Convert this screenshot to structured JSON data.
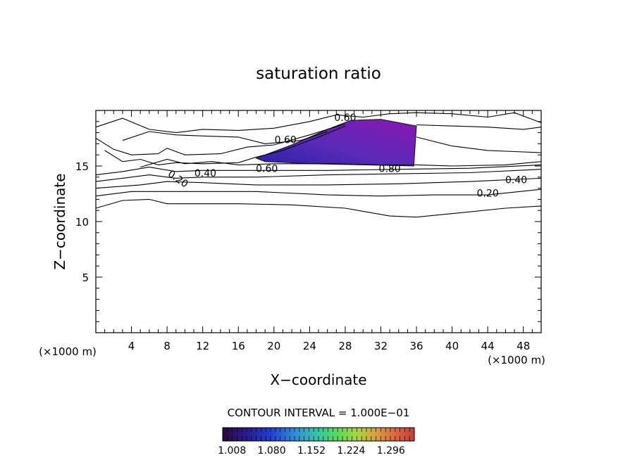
{
  "chart_data": {
    "type": "contour",
    "title": "saturation ratio",
    "xlabel": "X−coordinate",
    "ylabel": "Z−coordinate",
    "x_unit": "(×1000 m)",
    "y_unit": "(×1000 m)",
    "xlim": [
      0,
      50
    ],
    "ylim": [
      0,
      20
    ],
    "x_ticks": [
      4,
      8,
      12,
      16,
      20,
      24,
      28,
      32,
      36,
      40,
      44,
      48
    ],
    "y_ticks": [
      5,
      10,
      15
    ],
    "contour_interval_label": "CONTOUR INTERVAL = 1.000E−01",
    "contour_labels": [
      {
        "text": "0.20",
        "x": 9.2,
        "z": 13.8,
        "rotate": 35
      },
      {
        "text": "0.40",
        "x": 12.3,
        "z": 14.3
      },
      {
        "text": "0.60",
        "x": 19.2,
        "z": 14.7
      },
      {
        "text": "0.80",
        "x": 33.0,
        "z": 14.7
      },
      {
        "text": "0.40",
        "x": 47.2,
        "z": 13.7
      },
      {
        "text": "0.20",
        "x": 44.0,
        "z": 12.5
      },
      {
        "text": "0.60",
        "x": 28.0,
        "z": 19.3
      },
      {
        "text": "0.60",
        "x": 21.3,
        "z": 17.3
      }
    ],
    "shaded_region": {
      "description_value_range": [
        1.008,
        1.3
      ],
      "polygon": [
        [
          18.0,
          15.7
        ],
        [
          22.0,
          16.9
        ],
        [
          26.0,
          18.3
        ],
        [
          28.6,
          19.1
        ],
        [
          32.0,
          19.2
        ],
        [
          36.0,
          18.6
        ],
        [
          35.7,
          15.0
        ],
        [
          30.0,
          15.1
        ],
        [
          24.0,
          15.2
        ],
        [
          19.0,
          15.4
        ]
      ]
    },
    "contour_lines": [
      [
        [
          0,
          11.2
        ],
        [
          3,
          11.9
        ],
        [
          6,
          12.0
        ],
        [
          8,
          11.6
        ],
        [
          16,
          11.6
        ],
        [
          22,
          11.5
        ],
        [
          28,
          11.2
        ],
        [
          33,
          10.5
        ],
        [
          36,
          10.4
        ],
        [
          41,
          10.8
        ],
        [
          46,
          11.2
        ],
        [
          50,
          11.4
        ]
      ],
      [
        [
          0,
          12.3
        ],
        [
          4,
          12.7
        ],
        [
          10,
          12.7
        ],
        [
          18,
          12.7
        ],
        [
          26,
          12.4
        ],
        [
          32,
          12.3
        ],
        [
          38,
          12.4
        ],
        [
          44,
          12.4
        ],
        [
          50,
          12.9
        ]
      ],
      [
        [
          0,
          13.0
        ],
        [
          5,
          13.3
        ],
        [
          8,
          13.6
        ],
        [
          12,
          13.5
        ],
        [
          18,
          13.3
        ],
        [
          26,
          13.3
        ],
        [
          34,
          13.4
        ],
        [
          42,
          13.6
        ],
        [
          50,
          13.9
        ]
      ],
      [
        [
          0,
          13.6
        ],
        [
          3,
          13.9
        ],
        [
          6,
          14.2
        ],
        [
          9,
          13.9
        ],
        [
          12,
          14.0
        ],
        [
          18,
          14.0
        ],
        [
          26,
          14.2
        ],
        [
          34,
          14.3
        ],
        [
          42,
          14.4
        ],
        [
          50,
          14.7
        ]
      ],
      [
        [
          0,
          14.2
        ],
        [
          3,
          14.5
        ],
        [
          6,
          14.9
        ],
        [
          9,
          14.5
        ],
        [
          12,
          14.6
        ],
        [
          18,
          14.6
        ],
        [
          26,
          14.6
        ],
        [
          34,
          14.7
        ],
        [
          42,
          14.8
        ],
        [
          50,
          15.1
        ]
      ],
      [
        [
          0,
          18.5
        ],
        [
          3,
          19.3
        ],
        [
          6,
          18.3
        ],
        [
          9,
          18.0
        ],
        [
          12,
          18.3
        ],
        [
          16,
          18.2
        ],
        [
          20,
          18.4
        ],
        [
          24,
          19.0
        ],
        [
          27,
          19.6
        ],
        [
          30,
          19.4
        ],
        [
          33,
          19.7
        ],
        [
          36,
          19.8
        ],
        [
          40,
          19.7
        ],
        [
          44,
          19.4
        ],
        [
          47,
          19.8
        ],
        [
          50,
          18.9
        ]
      ],
      [
        [
          3,
          17.3
        ],
        [
          6,
          18.1
        ],
        [
          9,
          17.8
        ],
        [
          12,
          17.7
        ],
        [
          16,
          17.6
        ],
        [
          19,
          17.0
        ],
        [
          23,
          17.3
        ],
        [
          26,
          18.1
        ]
      ],
      [
        [
          0,
          17.5
        ],
        [
          2,
          16.5
        ],
        [
          4,
          16.0
        ],
        [
          7,
          16.1
        ],
        [
          8,
          16.6
        ],
        [
          10,
          16.0
        ],
        [
          14,
          16.1
        ],
        [
          17,
          16.7
        ],
        [
          20,
          16.9
        ],
        [
          24,
          17.8
        ],
        [
          28,
          18.8
        ]
      ],
      [
        [
          1,
          16.4
        ],
        [
          3,
          15.4
        ],
        [
          5,
          15.6
        ],
        [
          7,
          15.1
        ],
        [
          9,
          15.3
        ],
        [
          12,
          15.2
        ],
        [
          16,
          15.3
        ],
        [
          18,
          15.8
        ],
        [
          21,
          16.4
        ],
        [
          25,
          17.6
        ],
        [
          28,
          18.6
        ]
      ],
      [
        [
          5,
          14.9
        ],
        [
          8,
          15.6
        ],
        [
          10,
          15.2
        ],
        [
          13,
          15.4
        ],
        [
          16,
          15.1
        ],
        [
          20,
          15.2
        ],
        [
          26,
          15.2
        ],
        [
          32,
          15.1
        ],
        [
          36,
          15.1
        ],
        [
          40,
          15.0
        ],
        [
          46,
          15.1
        ],
        [
          50,
          15.4
        ]
      ],
      [
        [
          36,
          18.7
        ],
        [
          40,
          18.6
        ],
        [
          44,
          18.5
        ],
        [
          48,
          18.3
        ],
        [
          50,
          18.5
        ]
      ],
      [
        [
          36,
          17.6
        ],
        [
          40,
          16.8
        ],
        [
          44,
          16.4
        ],
        [
          47,
          16.3
        ],
        [
          50,
          16.2
        ]
      ]
    ],
    "colorbar": {
      "tick_labels": [
        "1.008",
        "1.080",
        "1.152",
        "1.224",
        "1.296"
      ],
      "colors": [
        "#2a0a3a",
        "#2a1a8a",
        "#1f3fd0",
        "#2f8fd8",
        "#37c8a0",
        "#5cd85a",
        "#a8d640",
        "#d8a040",
        "#d86a3a",
        "#c83a3a"
      ]
    }
  }
}
